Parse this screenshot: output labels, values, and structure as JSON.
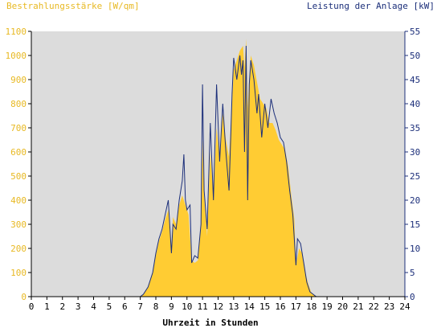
{
  "chart_data": {
    "type": "area",
    "left_axis_title": "Bestrahlungsstärke [W/qm]",
    "right_axis_title": "Leistung der Anlage [kW]",
    "xlabel": "Uhrzeit in Stunden",
    "x_range": [
      0,
      24
    ],
    "x_ticks": [
      "0",
      "1",
      "2",
      "3",
      "4",
      "5",
      "6",
      "7",
      "8",
      "9",
      "10",
      "11",
      "12",
      "13",
      "14",
      "15",
      "16",
      "17",
      "18",
      "19",
      "20",
      "21",
      "22",
      "23",
      "24"
    ],
    "y_left_range": [
      0,
      1100
    ],
    "y_left_ticks": [
      "0",
      "100",
      "200",
      "300",
      "400",
      "500",
      "600",
      "700",
      "800",
      "900",
      "1000",
      "1100"
    ],
    "y_right_range": [
      0,
      55
    ],
    "y_right_ticks": [
      "0",
      "5",
      "10",
      "15",
      "20",
      "25",
      "30",
      "35",
      "40",
      "45",
      "50",
      "55"
    ],
    "grid": false,
    "colors": {
      "irradiance": "#ffcc33",
      "power": "#1c2f7a",
      "plot_background": "#dcdcdc",
      "left_axis_text": "#e8b923",
      "right_axis_text": "#1c2f7a"
    },
    "series": [
      {
        "name": "Bestrahlungsstärke [W/qm]",
        "axis": "left",
        "style": "filled-area",
        "points": [
          [
            0,
            0
          ],
          [
            7.0,
            0
          ],
          [
            7.2,
            10
          ],
          [
            7.5,
            40
          ],
          [
            7.8,
            100
          ],
          [
            8.0,
            170
          ],
          [
            8.2,
            230
          ],
          [
            8.4,
            270
          ],
          [
            8.6,
            320
          ],
          [
            8.8,
            360
          ],
          [
            9.0,
            200
          ],
          [
            9.1,
            330
          ],
          [
            9.3,
            300
          ],
          [
            9.5,
            380
          ],
          [
            9.7,
            420
          ],
          [
            9.9,
            380
          ],
          [
            10.1,
            340
          ],
          [
            10.3,
            150
          ],
          [
            10.5,
            140
          ],
          [
            10.7,
            150
          ],
          [
            10.9,
            300
          ],
          [
            11.0,
            650
          ],
          [
            11.1,
            420
          ],
          [
            11.3,
            250
          ],
          [
            11.5,
            600
          ],
          [
            11.7,
            420
          ],
          [
            11.9,
            700
          ],
          [
            12.1,
            580
          ],
          [
            12.3,
            760
          ],
          [
            12.5,
            650
          ],
          [
            12.7,
            580
          ],
          [
            12.9,
            800
          ],
          [
            13.0,
            940
          ],
          [
            13.2,
            980
          ],
          [
            13.4,
            1020
          ],
          [
            13.6,
            1040
          ],
          [
            13.7,
            950
          ],
          [
            13.8,
            1070
          ],
          [
            13.9,
            780
          ],
          [
            14.0,
            900
          ],
          [
            14.1,
            1000
          ],
          [
            14.3,
            960
          ],
          [
            14.5,
            890
          ],
          [
            14.7,
            820
          ],
          [
            14.9,
            800
          ],
          [
            15.1,
            780
          ],
          [
            15.3,
            720
          ],
          [
            15.5,
            720
          ],
          [
            15.7,
            690
          ],
          [
            15.9,
            650
          ],
          [
            16.1,
            630
          ],
          [
            16.3,
            610
          ],
          [
            16.5,
            540
          ],
          [
            16.7,
            420
          ],
          [
            16.9,
            320
          ],
          [
            17.0,
            130
          ],
          [
            17.2,
            200
          ],
          [
            17.4,
            180
          ],
          [
            17.6,
            100
          ],
          [
            17.8,
            50
          ],
          [
            18.0,
            15
          ],
          [
            18.2,
            5
          ],
          [
            18.4,
            0
          ],
          [
            24,
            0
          ]
        ]
      },
      {
        "name": "Leistung der Anlage [kW]",
        "axis": "right",
        "style": "line",
        "points": [
          [
            0,
            0
          ],
          [
            7.0,
            0
          ],
          [
            7.2,
            0.5
          ],
          [
            7.5,
            2
          ],
          [
            7.8,
            5
          ],
          [
            8.0,
            9
          ],
          [
            8.2,
            12
          ],
          [
            8.4,
            14
          ],
          [
            8.6,
            17
          ],
          [
            8.8,
            20
          ],
          [
            9.0,
            9
          ],
          [
            9.1,
            15
          ],
          [
            9.3,
            14
          ],
          [
            9.5,
            20
          ],
          [
            9.7,
            24
          ],
          [
            9.8,
            29.5
          ],
          [
            9.9,
            20
          ],
          [
            10.0,
            18
          ],
          [
            10.2,
            19
          ],
          [
            10.3,
            7
          ],
          [
            10.5,
            8.5
          ],
          [
            10.7,
            8
          ],
          [
            10.9,
            15
          ],
          [
            11.0,
            44
          ],
          [
            11.1,
            22
          ],
          [
            11.3,
            14
          ],
          [
            11.5,
            36
          ],
          [
            11.7,
            20
          ],
          [
            11.9,
            44
          ],
          [
            12.1,
            28
          ],
          [
            12.3,
            40
          ],
          [
            12.5,
            30
          ],
          [
            12.7,
            22
          ],
          [
            12.9,
            42
          ],
          [
            13.0,
            49.5
          ],
          [
            13.2,
            45
          ],
          [
            13.4,
            50
          ],
          [
            13.5,
            46
          ],
          [
            13.6,
            49
          ],
          [
            13.7,
            30
          ],
          [
            13.8,
            52
          ],
          [
            13.9,
            20
          ],
          [
            14.0,
            44
          ],
          [
            14.1,
            49
          ],
          [
            14.3,
            45
          ],
          [
            14.5,
            38
          ],
          [
            14.6,
            42
          ],
          [
            14.8,
            33
          ],
          [
            15.0,
            40
          ],
          [
            15.2,
            35
          ],
          [
            15.4,
            41
          ],
          [
            15.6,
            38
          ],
          [
            15.8,
            36
          ],
          [
            16.0,
            33
          ],
          [
            16.2,
            32
          ],
          [
            16.4,
            28
          ],
          [
            16.6,
            22
          ],
          [
            16.8,
            17
          ],
          [
            17.0,
            6.5
          ],
          [
            17.1,
            12
          ],
          [
            17.3,
            11
          ],
          [
            17.5,
            7
          ],
          [
            17.7,
            3
          ],
          [
            17.9,
            1
          ],
          [
            18.1,
            0.5
          ],
          [
            18.3,
            0
          ],
          [
            24,
            0
          ]
        ]
      }
    ]
  }
}
